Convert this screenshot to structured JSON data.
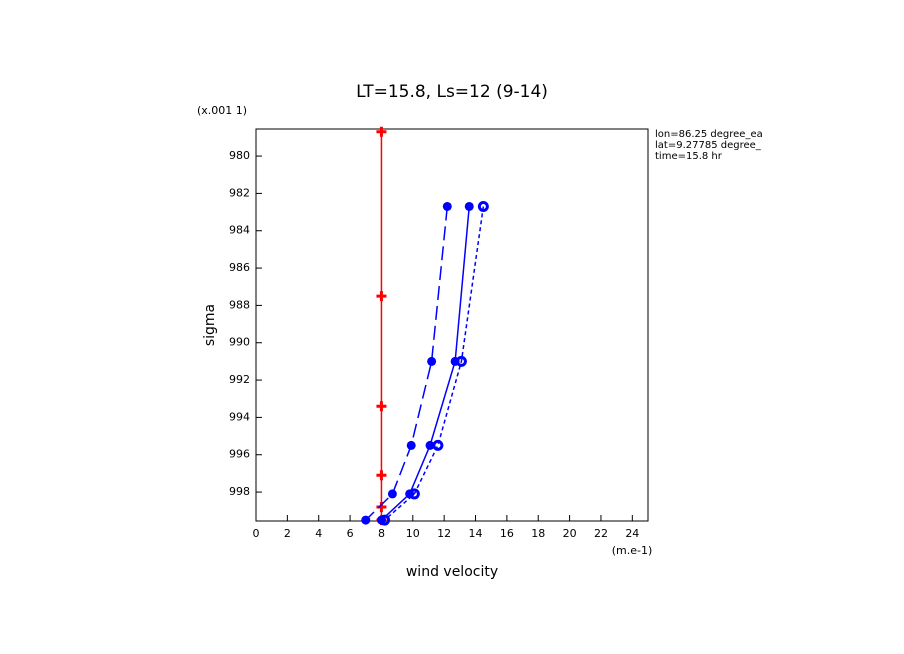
{
  "chart_data": {
    "type": "line",
    "title": "LT=15.8, Ls=12 (9-14)",
    "x_label": "wind velocity",
    "y_label": "sigma",
    "x_unit": "(m.e-1)",
    "y_unit": "(x.001 1)",
    "annotations": [
      "lon=86.25 degree_ea",
      "lat=9.27785 degree_",
      "time=15.8 hr"
    ],
    "xlim": [
      0,
      25
    ],
    "ylim": [
      999.55,
      978.55
    ],
    "xticks": [
      0,
      2,
      4,
      6,
      8,
      10,
      12,
      14,
      16,
      18,
      20,
      22,
      24
    ],
    "yticks": [
      980,
      982,
      984,
      986,
      988,
      990,
      992,
      994,
      996,
      998
    ],
    "series": [
      {
        "color": "#ff0000",
        "marker": "plus",
        "dash": "none",
        "values": [
          8,
          8,
          8,
          8,
          8,
          8
        ],
        "y": [
          978.7,
          987.5,
          993.4,
          997.1,
          998.8,
          999.5
        ]
      },
      {
        "color": "#0000ff",
        "marker": "dot",
        "dash": "14,6",
        "values": [
          12.2,
          11.2,
          9.9,
          8.7,
          7.0
        ],
        "y": [
          982.7,
          991.0,
          995.5,
          998.1,
          999.5
        ]
      },
      {
        "color": "#0000ff",
        "marker": "dot",
        "dash": "none",
        "values": [
          13.6,
          12.7,
          11.1,
          9.8,
          8.0
        ],
        "y": [
          982.7,
          991.0,
          995.5,
          998.1,
          999.5
        ]
      },
      {
        "color": "#0000ff",
        "marker": "ring",
        "dash": "4,3",
        "values": [
          14.5,
          13.1,
          11.6,
          10.1,
          8.2
        ],
        "y": [
          982.7,
          991.0,
          995.5,
          998.1,
          999.5
        ]
      }
    ]
  }
}
